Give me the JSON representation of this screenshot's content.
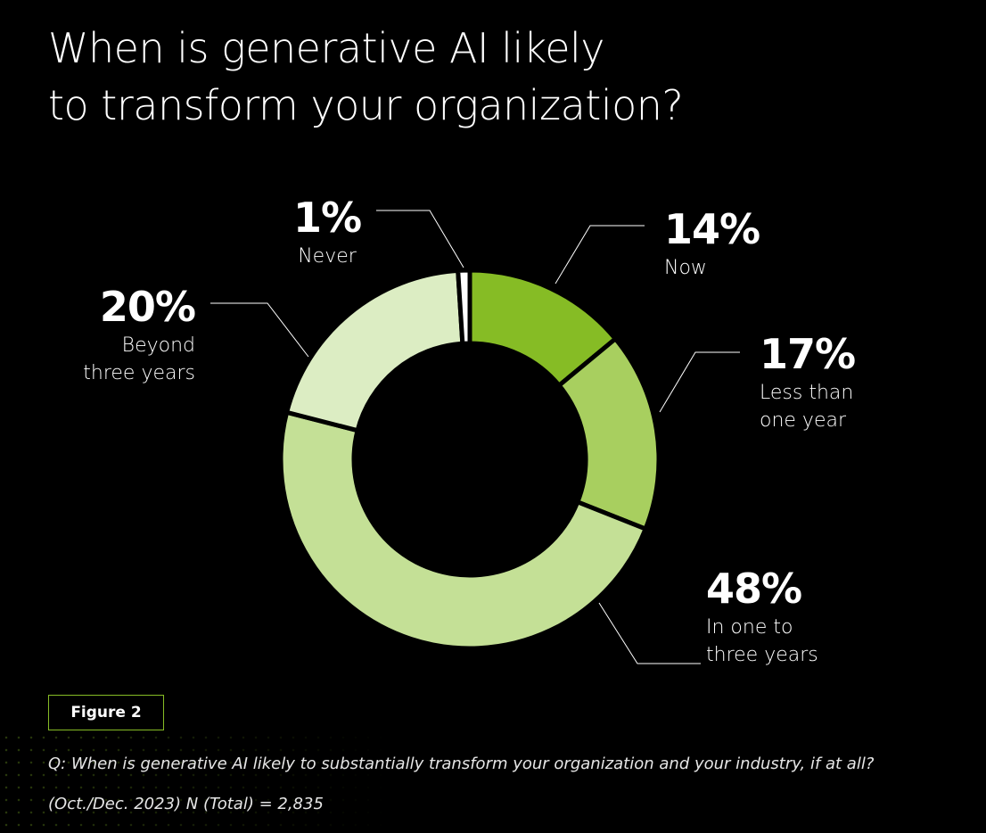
{
  "title": {
    "line1": "When is generative AI likely",
    "line2": "to transform your organization?"
  },
  "chart_data": {
    "type": "pie",
    "donut": true,
    "categories": [
      "Now",
      "Less than one year",
      "In one to three years",
      "Beyond three years",
      "Never"
    ],
    "values": [
      14,
      17,
      48,
      20,
      1
    ],
    "value_labels": [
      "14%",
      "17%",
      "48%",
      "20%",
      "1%"
    ],
    "label_lines": [
      [
        "Now"
      ],
      [
        "Less than",
        "one year"
      ],
      [
        "In one to",
        "three years"
      ],
      [
        "Beyond",
        "three years"
      ],
      [
        "Never"
      ]
    ],
    "colors": [
      "#86bc25",
      "#a8cf5f",
      "#c4e096",
      "#dcedc3",
      "#ffffff"
    ],
    "legend": "none"
  },
  "figure_label": "Figure 2",
  "footnote": {
    "question": "Q: When is generative AI likely to substantially transform your organization and your industry, if at all?",
    "sample": "(Oct./Dec. 2023) N (Total) = 2,835"
  },
  "colors": {
    "background": "#000000",
    "accent": "#86bc25"
  }
}
